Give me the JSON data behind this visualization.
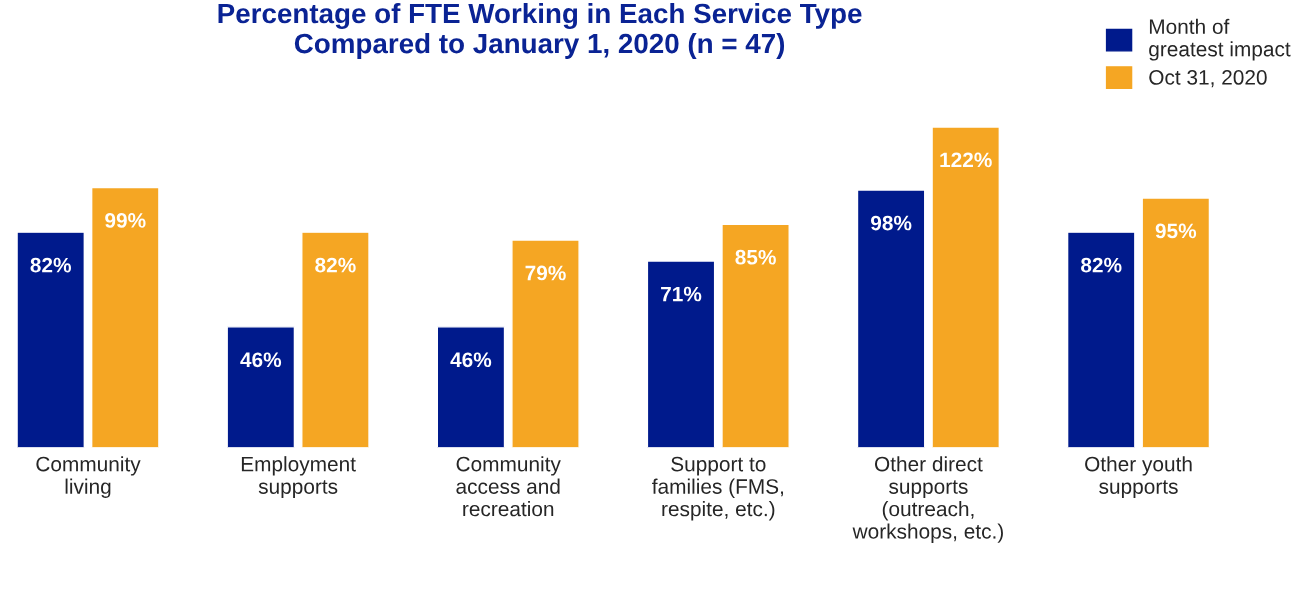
{
  "chart_data": {
    "type": "bar",
    "title": "Percentage of FTE Working in Each Service Type\nCompared to January 1, 2020 (n = 47)",
    "categories": [
      "Community\nliving",
      "Employment\nsupports",
      "Community\naccess and\nrecreation",
      "Support to\nfamilies (FMS,\nrespite, etc.)",
      "Other direct\nsupports\n(outreach,\nworkshops, etc.)",
      "Other youth\nsupports"
    ],
    "series": [
      {
        "name": "Month of\ngreatest impact",
        "color": "#001a8c",
        "values": [
          82,
          46,
          46,
          71,
          98,
          82
        ],
        "value_labels": [
          "82%",
          "46%",
          "46%",
          "71%",
          "98%",
          "82%"
        ]
      },
      {
        "name": "Oct 31, 2020",
        "color": "#f5a623",
        "values": [
          99,
          82,
          79,
          85,
          122,
          95
        ],
        "value_labels": [
          "99%",
          "82%",
          "79%",
          "85%",
          "122%",
          "95%"
        ]
      }
    ],
    "legend": "top right",
    "grid": false
  }
}
